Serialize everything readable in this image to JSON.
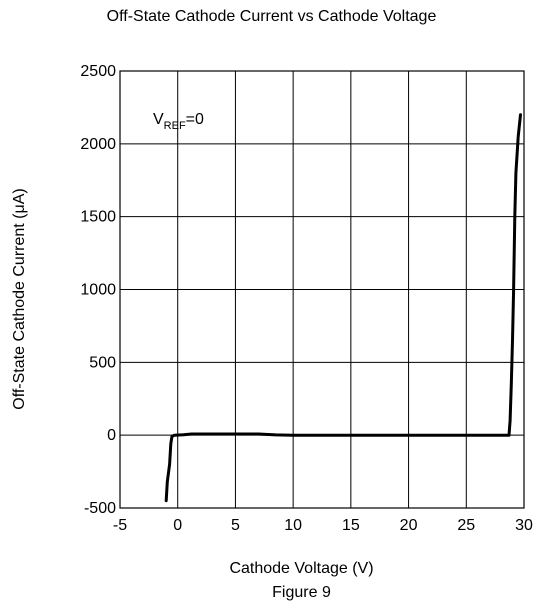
{
  "chart_data": {
    "type": "line",
    "title": "Off-State Cathode  Current vs Cathode Voltage",
    "xlabel": "Cathode Voltage (V)",
    "ylabel": "Off-State Cathode  Current   (μA)",
    "caption": "Figure  9",
    "annotation": {
      "main": "V",
      "sub": "REF",
      "rest": "=0"
    },
    "xlim": [
      -5,
      30
    ],
    "ylim": [
      -500,
      2500
    ],
    "xticks": [
      -5,
      0,
      5,
      10,
      15,
      20,
      25,
      30
    ],
    "yticks": [
      -500,
      0,
      500,
      1000,
      1500,
      2000,
      2500
    ],
    "grid": true,
    "series": [
      {
        "points": [
          [
            -1.0,
            -450
          ],
          [
            -0.9,
            -320
          ],
          [
            -0.7,
            -200
          ],
          [
            -0.6,
            -60
          ],
          [
            -0.5,
            -10
          ],
          [
            -0.3,
            0
          ],
          [
            0.5,
            3
          ],
          [
            1.2,
            8
          ],
          [
            3,
            8
          ],
          [
            7,
            8
          ],
          [
            8.5,
            2
          ],
          [
            10,
            0
          ],
          [
            20,
            0
          ],
          [
            28.5,
            0
          ],
          [
            28.7,
            0
          ],
          [
            28.8,
            100
          ],
          [
            28.9,
            350
          ],
          [
            29.0,
            650
          ],
          [
            29.1,
            1000
          ],
          [
            29.2,
            1500
          ],
          [
            29.3,
            1800
          ],
          [
            29.5,
            2050
          ],
          [
            29.7,
            2200
          ]
        ]
      }
    ]
  }
}
